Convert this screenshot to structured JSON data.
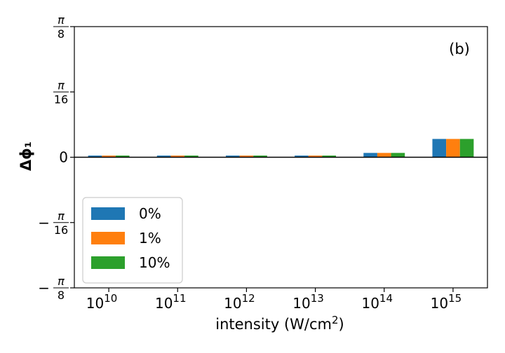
{
  "chart_data": {
    "type": "bar",
    "panel_label": "(b)",
    "xlabel": "intensity (W/cm²)",
    "ylabel": "Δϕ₁",
    "categories": [
      "10^10",
      "10^11",
      "10^12",
      "10^13",
      "10^14",
      "10^15"
    ],
    "category_labels": [
      {
        "base": "10",
        "exp": "10"
      },
      {
        "base": "10",
        "exp": "11"
      },
      {
        "base": "10",
        "exp": "12"
      },
      {
        "base": "10",
        "exp": "13"
      },
      {
        "base": "10",
        "exp": "14"
      },
      {
        "base": "10",
        "exp": "15"
      }
    ],
    "ylim": [
      -0.3927,
      0.3927
    ],
    "yticks": [
      {
        "value": 0.3927,
        "sign": "",
        "num": "π",
        "den": "8"
      },
      {
        "value": 0.19635,
        "sign": "",
        "num": "π",
        "den": "16"
      },
      {
        "value": 0,
        "text": "0"
      },
      {
        "value": -0.19635,
        "sign": "−",
        "num": "π",
        "den": "16"
      },
      {
        "value": -0.3927,
        "sign": "−",
        "num": "π",
        "den": "8"
      }
    ],
    "zero_line": true,
    "grid": false,
    "legend_position": "lower-left",
    "series": [
      {
        "name": "0%",
        "color": "#1f77b4",
        "values": [
          0.005,
          0.005,
          0.005,
          0.005,
          0.013,
          0.055
        ]
      },
      {
        "name": "1%",
        "color": "#ff7f0e",
        "values": [
          0.005,
          0.005,
          0.005,
          0.005,
          0.013,
          0.055
        ]
      },
      {
        "name": "10%",
        "color": "#2ca02c",
        "values": [
          0.005,
          0.005,
          0.005,
          0.005,
          0.013,
          0.055
        ]
      }
    ]
  }
}
